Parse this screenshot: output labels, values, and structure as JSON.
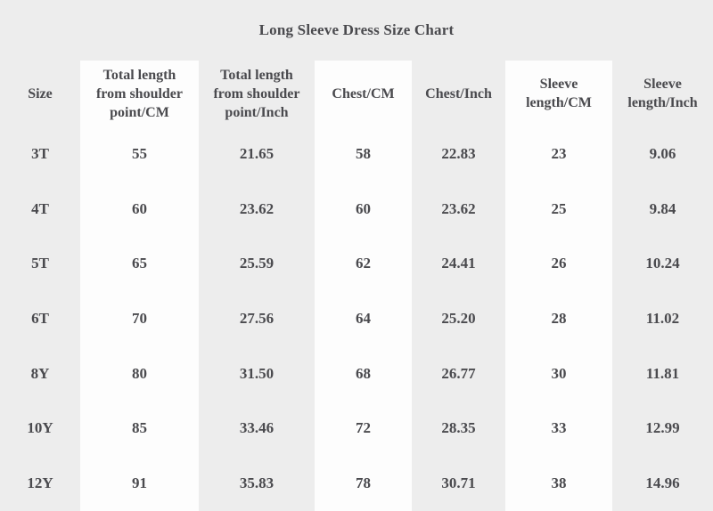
{
  "title": "Long Sleeve Dress Size Chart",
  "colors": {
    "page_bg": "#ededed",
    "column_stripe": "#fdfdfd",
    "text": "#4a4a4e"
  },
  "table": {
    "columns": [
      {
        "name": "size",
        "shaded": false,
        "lines": [
          "Size"
        ]
      },
      {
        "name": "total-length-cm",
        "shaded": true,
        "lines": [
          "Total length",
          "from shoulder",
          "point/CM"
        ]
      },
      {
        "name": "total-length-inch",
        "shaded": false,
        "lines": [
          "Total length",
          "from shoulder",
          "point/Inch"
        ]
      },
      {
        "name": "chest-cm",
        "shaded": true,
        "lines": [
          "Chest/CM"
        ]
      },
      {
        "name": "chest-inch",
        "shaded": false,
        "lines": [
          "Chest/Inch"
        ]
      },
      {
        "name": "sleeve-length-cm",
        "shaded": true,
        "lines": [
          "Sleeve",
          "length/CM"
        ]
      },
      {
        "name": "sleeve-length-inch",
        "shaded": false,
        "lines": [
          "Sleeve",
          "length/Inch"
        ]
      }
    ],
    "rows": [
      [
        "3T",
        "55",
        "21.65",
        "58",
        "22.83",
        "23",
        "9.06"
      ],
      [
        "4T",
        "60",
        "23.62",
        "60",
        "23.62",
        "25",
        "9.84"
      ],
      [
        "5T",
        "65",
        "25.59",
        "62",
        "24.41",
        "26",
        "10.24"
      ],
      [
        "6T",
        "70",
        "27.56",
        "64",
        "25.20",
        "28",
        "11.02"
      ],
      [
        "8Y",
        "80",
        "31.50",
        "68",
        "26.77",
        "30",
        "11.81"
      ],
      [
        "10Y",
        "85",
        "33.46",
        "72",
        "28.35",
        "33",
        "12.99"
      ],
      [
        "12Y",
        "91",
        "35.83",
        "78",
        "30.71",
        "38",
        "14.96"
      ]
    ]
  }
}
